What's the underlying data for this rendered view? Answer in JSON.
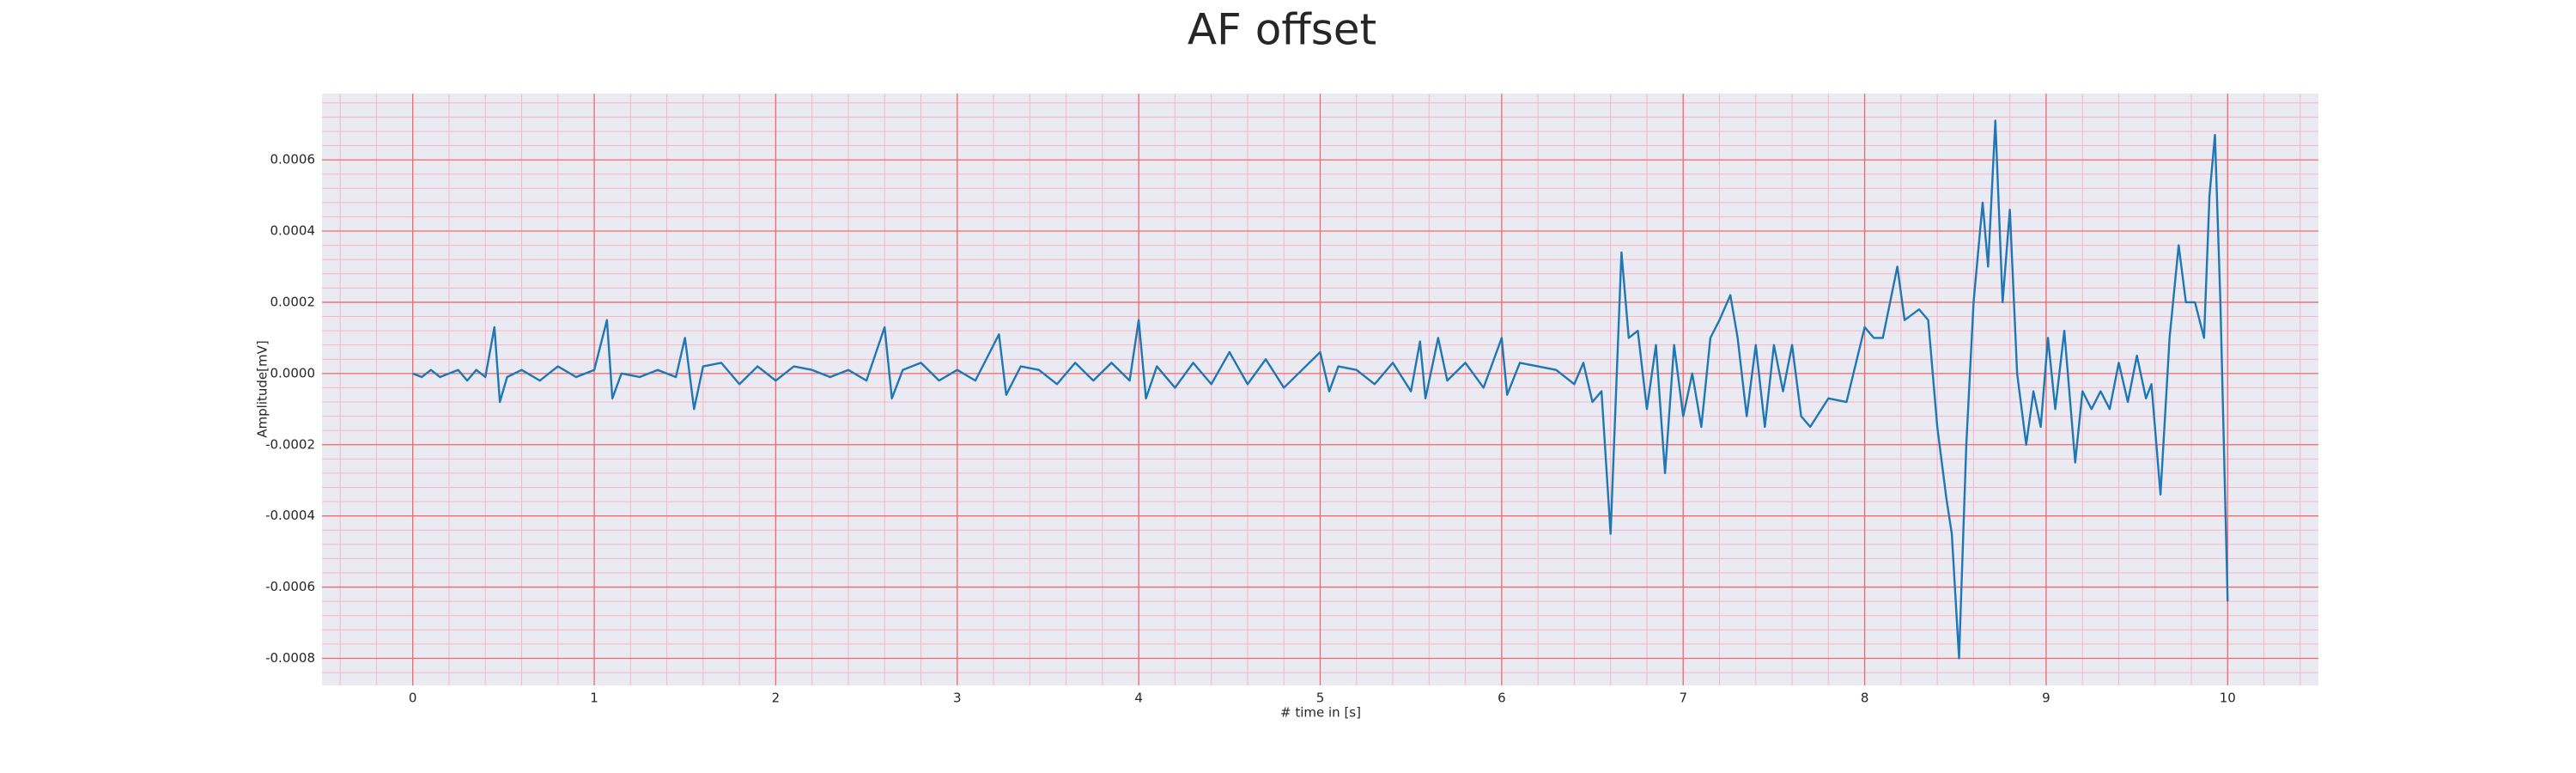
{
  "chart_data": {
    "type": "line",
    "title": "AF offset",
    "xlabel": "# time in [s]",
    "ylabel": "Amplitude[mV]",
    "x": [
      0,
      0.05,
      0.1,
      0.15,
      0.2,
      0.25,
      0.3,
      0.35,
      0.4,
      0.45,
      0.48,
      0.52,
      0.6,
      0.7,
      0.8,
      0.9,
      1.0,
      1.07,
      1.1,
      1.15,
      1.25,
      1.35,
      1.45,
      1.5,
      1.55,
      1.6,
      1.7,
      1.8,
      1.9,
      2.0,
      2.1,
      2.2,
      2.3,
      2.4,
      2.5,
      2.6,
      2.64,
      2.7,
      2.8,
      2.9,
      3.0,
      3.1,
      3.23,
      3.27,
      3.35,
      3.45,
      3.55,
      3.65,
      3.75,
      3.85,
      3.95,
      4.0,
      4.04,
      4.1,
      4.2,
      4.3,
      4.4,
      4.5,
      4.6,
      4.7,
      4.8,
      4.9,
      5.0,
      5.05,
      5.1,
      5.2,
      5.3,
      5.4,
      5.5,
      5.55,
      5.58,
      5.65,
      5.7,
      5.8,
      5.9,
      6.0,
      6.03,
      6.1,
      6.2,
      6.3,
      6.4,
      6.45,
      6.5,
      6.55,
      6.6,
      6.66,
      6.7,
      6.75,
      6.8,
      6.85,
      6.9,
      6.95,
      7.0,
      7.05,
      7.1,
      7.15,
      7.2,
      7.26,
      7.3,
      7.35,
      7.4,
      7.45,
      7.5,
      7.55,
      7.6,
      7.65,
      7.7,
      7.8,
      7.9,
      8.0,
      8.05,
      8.1,
      8.18,
      8.22,
      8.3,
      8.35,
      8.4,
      8.45,
      8.48,
      8.52,
      8.56,
      8.6,
      8.65,
      8.68,
      8.72,
      8.76,
      8.8,
      8.84,
      8.89,
      8.93,
      8.97,
      9.01,
      9.05,
      9.1,
      9.16,
      9.2,
      9.25,
      9.3,
      9.35,
      9.4,
      9.45,
      9.5,
      9.55,
      9.58,
      9.63,
      9.68,
      9.73,
      9.77,
      9.82,
      9.87,
      9.9,
      9.93,
      9.96,
      10.0
    ],
    "series": [
      {
        "name": "AF offset",
        "color": "#1f77b4",
        "values": [
          0,
          -1e-05,
          1e-05,
          -1e-05,
          0,
          1e-05,
          -2e-05,
          1e-05,
          -1e-05,
          0.00013,
          -8e-05,
          -1e-05,
          1e-05,
          -2e-05,
          2e-05,
          -1e-05,
          1e-05,
          0.00015,
          -7e-05,
          0,
          -1e-05,
          1e-05,
          -1e-05,
          0.0001,
          -0.0001,
          2e-05,
          3e-05,
          -3e-05,
          2e-05,
          -2e-05,
          2e-05,
          1e-05,
          -1e-05,
          1e-05,
          -2e-05,
          0.00013,
          -7e-05,
          1e-05,
          3e-05,
          -2e-05,
          1e-05,
          -2e-05,
          0.00011,
          -6e-05,
          2e-05,
          1e-05,
          -3e-05,
          3e-05,
          -2e-05,
          3e-05,
          -2e-05,
          0.00015,
          -7e-05,
          2e-05,
          -4e-05,
          3e-05,
          -3e-05,
          6e-05,
          -3e-05,
          4e-05,
          -4e-05,
          1e-05,
          6e-05,
          -5e-05,
          2e-05,
          1e-05,
          -3e-05,
          3e-05,
          -5e-05,
          9e-05,
          -7e-05,
          0.0001,
          -2e-05,
          3e-05,
          -4e-05,
          0.0001,
          -6e-05,
          3e-05,
          2e-05,
          1e-05,
          -3e-05,
          3e-05,
          -8e-05,
          -5e-05,
          -0.00045,
          0.00034,
          0.0001,
          0.00012,
          -0.0001,
          8e-05,
          -0.00028,
          8e-05,
          -0.00012,
          0,
          -0.00015,
          0.0001,
          0.00015,
          0.00022,
          0.0001,
          -0.00012,
          8e-05,
          -0.00015,
          8e-05,
          -5e-05,
          8e-05,
          -0.00012,
          -0.00015,
          -7e-05,
          -8e-05,
          0.00013,
          0.0001,
          0.0001,
          0.0003,
          0.00015,
          0.00018,
          0.00015,
          -0.00015,
          -0.00035,
          -0.00045,
          -0.0008,
          -0.0002,
          0.0002,
          0.00048,
          0.0003,
          0.00071,
          0.0002,
          0.00046,
          0,
          -0.0002,
          -5e-05,
          -0.00015,
          0.0001,
          -0.0001,
          0.00012,
          -0.00025,
          -5e-05,
          -0.0001,
          -5e-05,
          -0.0001,
          3e-05,
          -8e-05,
          5e-05,
          -7e-05,
          -3e-05,
          -0.00034,
          0.0001,
          0.00036,
          0.0002,
          0.0002,
          0.0001,
          0.0005,
          0.00067,
          0.0002,
          -0.00064
        ]
      }
    ],
    "xlim": [
      -0.5,
      10.5
    ],
    "xticks": [
      0,
      1,
      2,
      3,
      4,
      5,
      6,
      7,
      8,
      9,
      10
    ],
    "ylim": [
      -0.000876,
      0.000786
    ],
    "yticks": [
      -0.0008,
      -0.0006,
      -0.0004,
      -0.0002,
      {
        "value": 0,
        "label": "0.0000"
      },
      0.0002,
      0.0004,
      0.0006
    ],
    "grid": true,
    "minor_grid": true
  }
}
